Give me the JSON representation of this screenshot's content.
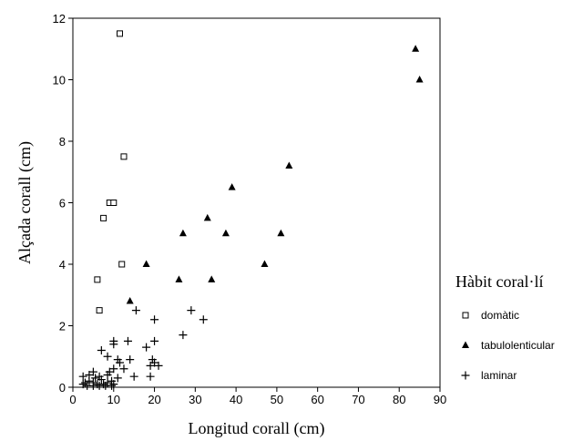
{
  "chart_data": {
    "type": "scatter",
    "title": "",
    "xlabel": "Longitud corall (cm)",
    "ylabel": "Alçada corall (cm)",
    "xlim": [
      0,
      90
    ],
    "ylim": [
      0,
      12
    ],
    "xticks": [
      "0",
      "10",
      "20",
      "30",
      "40",
      "50",
      "60",
      "70",
      "80",
      "90"
    ],
    "yticks": [
      "0",
      "2",
      "4",
      "6",
      "8",
      "10",
      "12"
    ],
    "grid": false,
    "legend": {
      "title": "Hàbit coral·lí",
      "placement": "right"
    },
    "series": [
      {
        "name": "domàtic",
        "marker": "square-open",
        "color": "#000000",
        "points": [
          [
            11.5,
            11.5
          ],
          [
            12.5,
            7.5
          ],
          [
            9.0,
            6.0
          ],
          [
            10.0,
            6.0
          ],
          [
            7.5,
            5.5
          ],
          [
            12.0,
            4.0
          ],
          [
            6.0,
            3.5
          ],
          [
            6.5,
            2.5
          ]
        ]
      },
      {
        "name": "tabulolenticular",
        "marker": "triangle-filled",
        "color": "#000000",
        "points": [
          [
            84,
            11
          ],
          [
            85,
            10
          ],
          [
            53,
            7.2
          ],
          [
            39,
            6.5
          ],
          [
            33,
            5.5
          ],
          [
            27,
            5.0
          ],
          [
            37.5,
            5.0
          ],
          [
            51,
            5.0
          ],
          [
            18,
            4.0
          ],
          [
            47,
            4.0
          ],
          [
            26,
            3.5
          ],
          [
            34,
            3.5
          ],
          [
            14,
            2.8
          ]
        ]
      },
      {
        "name": "laminar",
        "marker": "plus",
        "color": "#000000",
        "points": [
          [
            15.5,
            2.5
          ],
          [
            29,
            2.5
          ],
          [
            20,
            2.2
          ],
          [
            32,
            2.2
          ],
          [
            27,
            1.7
          ],
          [
            10,
            1.5
          ],
          [
            13.5,
            1.5
          ],
          [
            20,
            1.5
          ],
          [
            10,
            1.4
          ],
          [
            18,
            1.3
          ],
          [
            7,
            1.2
          ],
          [
            8.5,
            1.0
          ],
          [
            11,
            0.9
          ],
          [
            14,
            0.9
          ],
          [
            19.5,
            0.9
          ],
          [
            11.5,
            0.8
          ],
          [
            20,
            0.8
          ],
          [
            21,
            0.7
          ],
          [
            19,
            0.7
          ],
          [
            10,
            0.6
          ],
          [
            12.5,
            0.6
          ],
          [
            5,
            0.5
          ],
          [
            9,
            0.5
          ],
          [
            15,
            0.35
          ],
          [
            19,
            0.35
          ],
          [
            2.5,
            0.35
          ],
          [
            4,
            0.4
          ],
          [
            5.5,
            0.3
          ],
          [
            6.5,
            0.35
          ],
          [
            8.5,
            0.4
          ],
          [
            11,
            0.3
          ],
          [
            7,
            0.25
          ],
          [
            3,
            0.15
          ],
          [
            4,
            0.2
          ],
          [
            5,
            0.15
          ],
          [
            6,
            0.1
          ],
          [
            7.5,
            0.1
          ],
          [
            8.5,
            0.15
          ],
          [
            9.5,
            0.2
          ],
          [
            3.5,
            0.05
          ],
          [
            5,
            0.05
          ],
          [
            6.5,
            0.05
          ],
          [
            8,
            0.05
          ],
          [
            9.5,
            0.05
          ],
          [
            2.5,
            0.1
          ],
          [
            10,
            0.1
          ]
        ]
      }
    ]
  }
}
